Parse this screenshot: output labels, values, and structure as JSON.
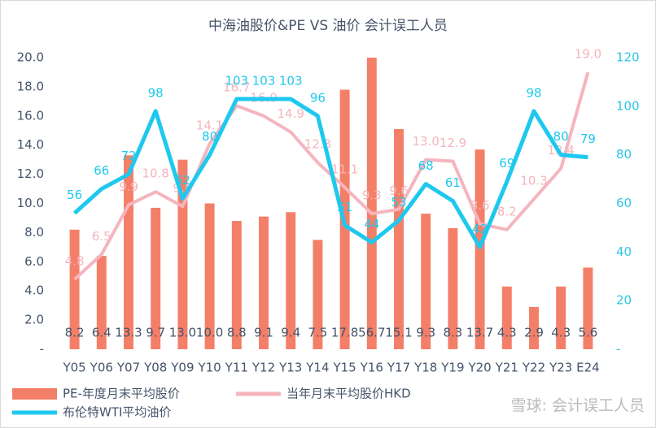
{
  "chart_data": {
    "type": "bar-line",
    "title": "中海油股价&PE VS 油价 会计误工人员",
    "watermark": "雪球: 会计误工人员",
    "categories": [
      "Y05",
      "Y06",
      "Y07",
      "Y08",
      "Y09",
      "Y10",
      "Y11",
      "Y12",
      "Y13",
      "Y14",
      "Y15",
      "Y16",
      "Y17",
      "Y18",
      "Y19",
      "Y20",
      "Y21",
      "Y22",
      "Y23",
      "E24"
    ],
    "series": [
      {
        "name": "PE-年度月末平均股价",
        "type": "bar",
        "color": "#f47f68",
        "axis": "y",
        "values": [
          8.2,
          6.4,
          13.3,
          9.7,
          13.0,
          10.0,
          8.8,
          9.1,
          9.4,
          7.5,
          17.8,
          56.7,
          15.1,
          9.3,
          8.3,
          13.7,
          4.3,
          2.9,
          4.3,
          5.6
        ],
        "value_labels": [
          "8.2",
          "6.4",
          "13.3",
          "9.7",
          "13.0",
          "10.0",
          "8.8",
          "9.1",
          "9.4",
          "7.5",
          "17.8",
          "56.7",
          "15.1",
          "9.3",
          "8.3",
          "13.7",
          "4.3",
          "2.9",
          "4.3",
          "5.6"
        ]
      },
      {
        "name": "当年月末平均股价HKD",
        "type": "line",
        "color": "#f5b5be",
        "axis": "y",
        "values": [
          4.8,
          6.5,
          9.9,
          10.8,
          9.8,
          14.1,
          16.7,
          16.0,
          14.9,
          12.8,
          11.1,
          9.3,
          9.6,
          13.0,
          12.9,
          8.6,
          8.2,
          10.3,
          12.4,
          19.0
        ],
        "value_labels": [
          "4.8",
          "6.5",
          "9.9",
          "10.8",
          "9.8",
          "14.1",
          "16.7",
          "16.0",
          "14.9",
          "12.8",
          "11.1",
          "9.3",
          "9.6",
          "13.0",
          "12.9",
          "8.6",
          "8.2",
          "10.3",
          "12.4",
          "19.0"
        ]
      },
      {
        "name": "布伦特WTI平均油价",
        "type": "line",
        "color": "#1ec8ee",
        "axis": "y2",
        "values": [
          56,
          66,
          72,
          98,
          62,
          80,
          103,
          103,
          103,
          96,
          51,
          44,
          53,
          68,
          61,
          42,
          69,
          98,
          80,
          79
        ]
      }
    ],
    "ylim": [
      0,
      20
    ],
    "yticks": [
      {
        "value": 0,
        "label": "-"
      },
      {
        "value": 2,
        "label": "2.0"
      },
      {
        "value": 4,
        "label": "4.0"
      },
      {
        "value": 6,
        "label": "6.0"
      },
      {
        "value": 8,
        "label": "8.0"
      },
      {
        "value": 10,
        "label": "10.0"
      },
      {
        "value": 12,
        "label": "12.0"
      },
      {
        "value": 14,
        "label": "14.0"
      },
      {
        "value": 16,
        "label": "16.0"
      },
      {
        "value": 18,
        "label": "18.0"
      },
      {
        "value": 20,
        "label": "20.0"
      }
    ],
    "y2lim": [
      0,
      120
    ],
    "y2ticks": [
      {
        "value": 0,
        "label": "-"
      },
      20,
      40,
      60,
      80,
      100,
      120
    ],
    "grid": false,
    "legend": "bottom"
  }
}
